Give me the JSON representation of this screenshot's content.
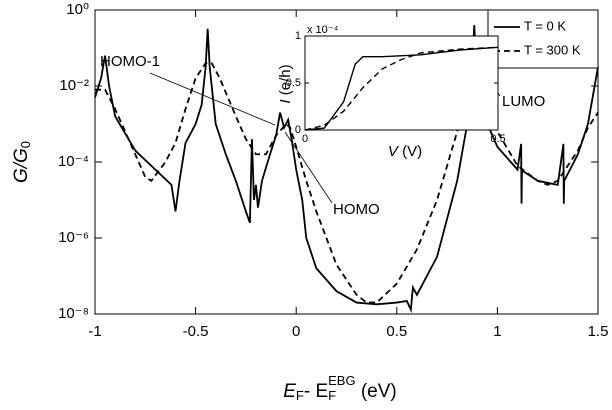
{
  "chart_data": [
    {
      "type": "line",
      "log_y": true,
      "xlabel_parts": [
        "E",
        "F",
        "- E",
        "F",
        "EBG",
        " (eV)"
      ],
      "ylabel_parts": [
        "G/G",
        "0"
      ],
      "xlim": [
        -1,
        1.5
      ],
      "xticks": [
        -1,
        -0.5,
        0,
        0.5,
        1,
        1.5
      ],
      "ylim": [
        1e-08,
        1
      ],
      "yticks": [
        {
          "value": 1,
          "label": "10⁰"
        },
        {
          "value": 0.01,
          "label": "10⁻²"
        },
        {
          "value": 0.0001,
          "label": "10⁻⁴"
        },
        {
          "value": 1e-06,
          "label": "10⁻⁶"
        },
        {
          "value": 1e-08,
          "label": "10⁻⁸"
        }
      ],
      "legend": "upper right",
      "annotations": [
        "HOMO-1",
        "HOMO",
        "LUMO"
      ],
      "series": [
        {
          "name": "T = 0 K",
          "color": "#000000",
          "linestyle": "solid",
          "x": [
            -1,
            -0.97,
            -0.95,
            -0.93,
            -0.9,
            -0.8,
            -0.7,
            -0.62,
            -0.6,
            -0.58,
            -0.55,
            -0.53,
            -0.5,
            -0.47,
            -0.45,
            -0.44,
            -0.43,
            -0.4,
            -0.35,
            -0.3,
            -0.25,
            -0.23,
            -0.22,
            -0.21,
            -0.2,
            -0.19,
            -0.17,
            -0.13,
            -0.1,
            -0.08,
            -0.06,
            -0.04,
            -0.02,
            0,
            0.03,
            0.05,
            0.1,
            0.2,
            0.3,
            0.4,
            0.5,
            0.55,
            0.57,
            0.58,
            0.6,
            0.7,
            0.8,
            0.85,
            0.87,
            0.885,
            0.9,
            0.95,
            1,
            1.1,
            1.118,
            1.12,
            1.122,
            1.2,
            1.3,
            1.328,
            1.33,
            1.332,
            1.4,
            1.45,
            1.5
          ],
          "values": [
            0.005,
            0.016,
            0.063,
            0.01,
            0.0016,
            0.0002,
            6.3e-05,
            2.5e-05,
            5e-06,
            3.2e-05,
            0.00032,
            0.0005,
            0.001,
            0.0032,
            0.032,
            0.32,
            0.032,
            0.001,
            0.00016,
            3.2e-05,
            5e-06,
            2.5e-06,
            0.0004,
            1e-05,
            2.5e-05,
            6.3e-06,
            3.2e-05,
            0.00016,
            0.0005,
            0.002,
            0.0008,
            0.0013,
            0.00032,
            6.3e-05,
            1e-05,
            1e-06,
            1.6e-07,
            4e-08,
            2e-08,
            1.8e-08,
            2e-08,
            2.2e-08,
            1.3e-08,
            5e-08,
            3.2e-08,
            3.2e-07,
            3.2e-05,
            0.001,
            0.01,
            0.4,
            0.01,
            0.001,
            0.00025,
            6.3e-05,
            0.0003,
            8e-06,
            6e-05,
            3.2e-05,
            2.5e-05,
            0.0003,
            8e-06,
            3.2e-05,
            0.00016,
            0.001,
            0.032
          ]
        },
        {
          "name": "T = 300 K",
          "color": "#000000",
          "linestyle": "dashed",
          "x": [
            -1,
            -0.95,
            -0.9,
            -0.8,
            -0.75,
            -0.72,
            -0.65,
            -0.6,
            -0.55,
            -0.5,
            -0.45,
            -0.42,
            -0.38,
            -0.3,
            -0.25,
            -0.2,
            -0.15,
            -0.1,
            -0.05,
            -0.03,
            0,
            0.05,
            0.1,
            0.2,
            0.3,
            0.35,
            0.4,
            0.5,
            0.6,
            0.7,
            0.8,
            0.85,
            0.9,
            0.95,
            1,
            1.1,
            1.2,
            1.25,
            1.3,
            1.4,
            1.45,
            1.5
          ],
          "values": [
            0.008,
            0.008,
            0.0025,
            0.00016,
            4e-05,
            3.2e-05,
            0.0001,
            0.00032,
            0.0025,
            0.016,
            0.04,
            0.04,
            0.016,
            0.0016,
            0.0004,
            0.00016,
            0.00016,
            0.0005,
            0.001,
            0.0008,
            0.00025,
            3.2e-05,
            5e-06,
            2e-07,
            3.2e-08,
            2e-08,
            2e-08,
            6.3e-08,
            5e-07,
            1e-05,
            0.00063,
            0.005,
            0.013,
            0.004,
            0.00063,
            8e-05,
            3.2e-05,
            2.5e-05,
            3.2e-05,
            0.0002,
            0.0008,
            0.002
          ]
        }
      ]
    },
    {
      "type": "line",
      "log_y": false,
      "xlabel_parts": [
        "V",
        " (V)"
      ],
      "ylabel_parts": [
        "I",
        " (e/h)"
      ],
      "y_scale_label": "x 10⁻⁴",
      "xlim": [
        0,
        0.5
      ],
      "xticks": [
        0,
        0.5
      ],
      "ylim": [
        0,
        1
      ],
      "yticks": [
        0,
        0.5,
        1
      ],
      "series": [
        {
          "name": "T = 0 K",
          "color": "#000000",
          "linestyle": "solid",
          "x": [
            0,
            0.05,
            0.1,
            0.13,
            0.15,
            0.2,
            0.3,
            0.4,
            0.5
          ],
          "values": [
            0,
            0.02,
            0.3,
            0.7,
            0.78,
            0.78,
            0.8,
            0.85,
            0.88
          ]
        },
        {
          "name": "T = 300 K",
          "color": "#000000",
          "linestyle": "dashed",
          "x": [
            0,
            0.05,
            0.1,
            0.15,
            0.2,
            0.25,
            0.3,
            0.4,
            0.5
          ],
          "values": [
            0,
            0.05,
            0.2,
            0.45,
            0.65,
            0.75,
            0.82,
            0.86,
            0.88
          ]
        }
      ]
    }
  ]
}
